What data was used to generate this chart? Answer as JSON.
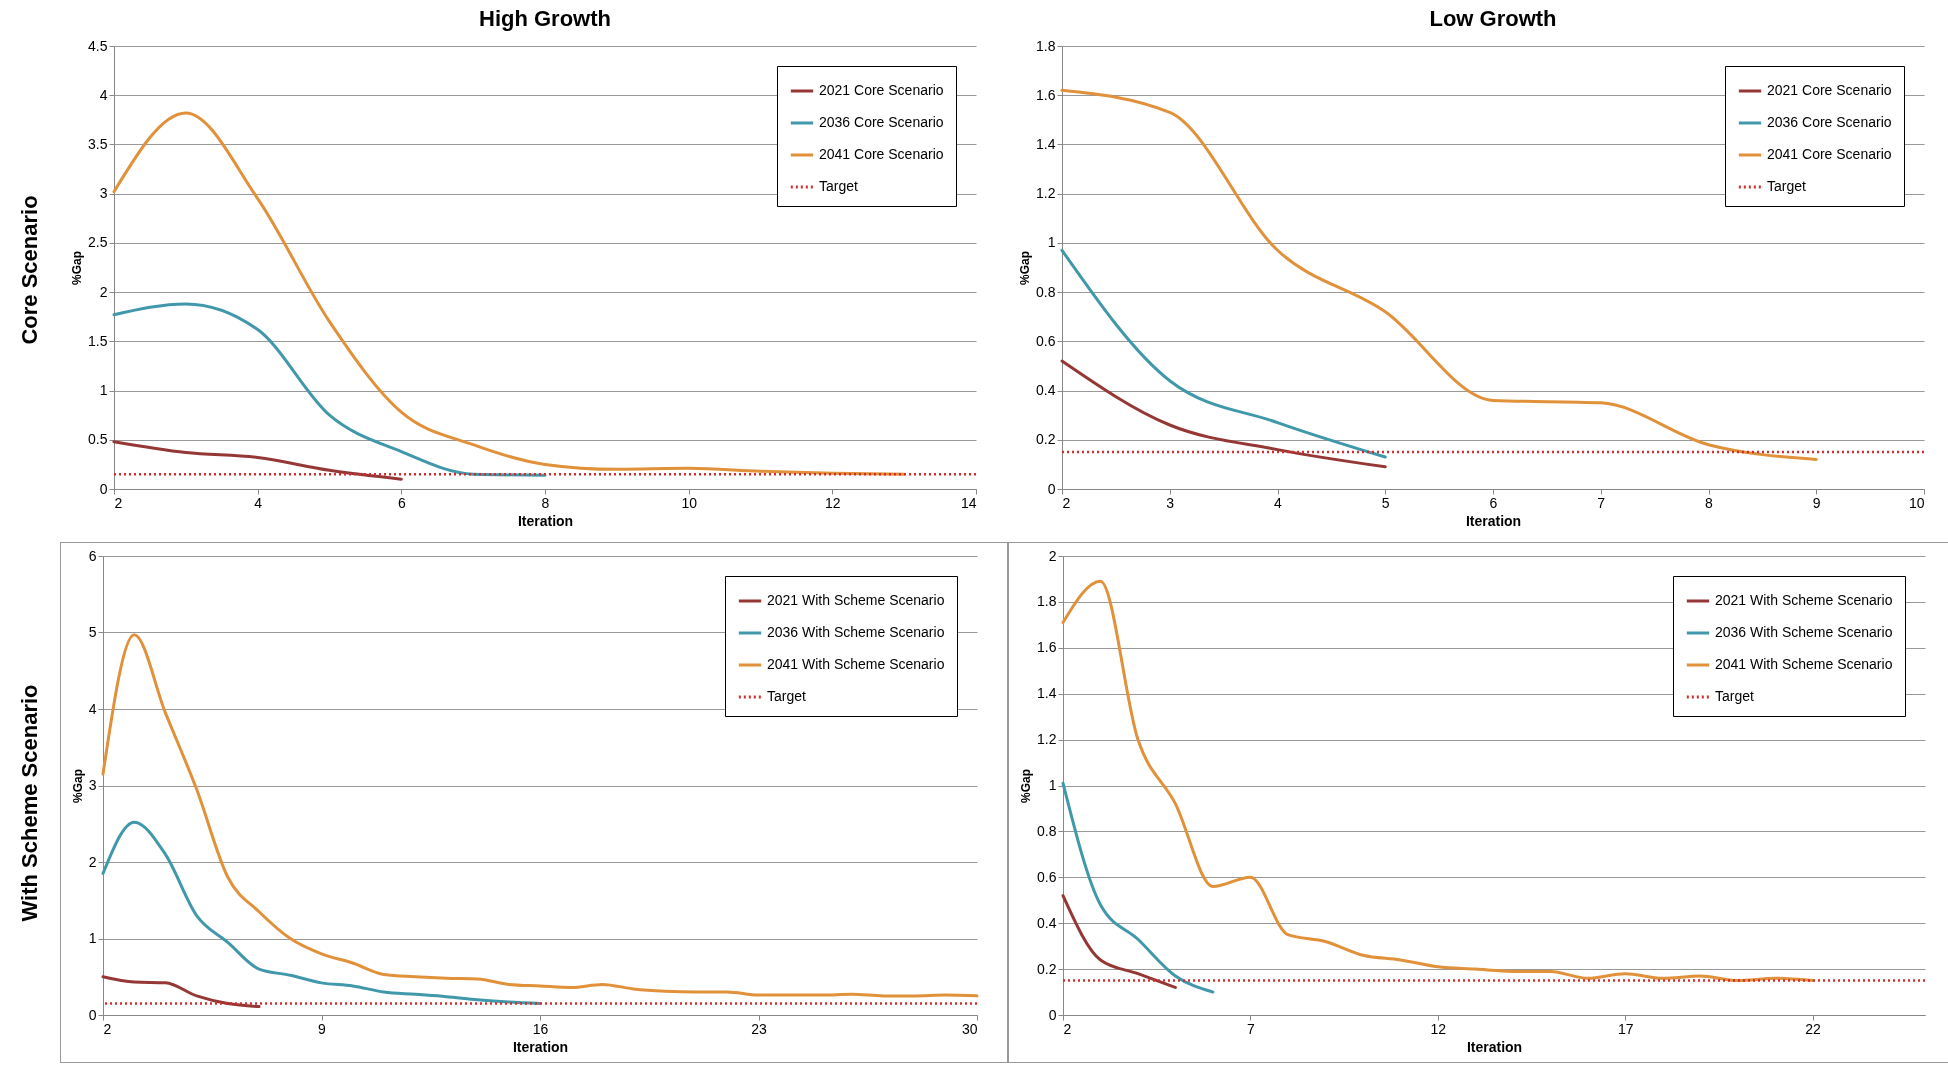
{
  "chart_data": [
    {
      "type": "line",
      "title": "High Growth",
      "annotations": [
        "Core Scenario"
      ],
      "xlabel": "Iteration",
      "ylabel": "%Gap",
      "xlim": [
        2,
        14
      ],
      "xticks": [
        2,
        4,
        6,
        8,
        10,
        12,
        14
      ],
      "ylim": [
        0,
        4.5
      ],
      "yticks": [
        0,
        0.5,
        1,
        1.5,
        2,
        2.5,
        3,
        3.5,
        4,
        4.5
      ],
      "grid": "y",
      "legend": "top right",
      "line_style": "solid",
      "series": [
        {
          "name": "2021 Core Scenario",
          "color": "#953735",
          "x": [
            2,
            3,
            4,
            5,
            6
          ],
          "values": [
            0.48,
            0.37,
            0.32,
            0.19,
            0.1
          ]
        },
        {
          "name": "2036 Core Scenario",
          "color": "#4198ab",
          "x": [
            2,
            3,
            4,
            5,
            6,
            7,
            8
          ],
          "values": [
            1.77,
            1.88,
            1.62,
            0.75,
            0.38,
            0.15,
            0.14
          ]
        },
        {
          "name": "2041 Core Scenario",
          "color": "#e0913a",
          "x": [
            2,
            3,
            4,
            5,
            6,
            7,
            8,
            9,
            10,
            11,
            12,
            13
          ],
          "values": [
            3.02,
            3.82,
            2.95,
            1.7,
            0.78,
            0.45,
            0.25,
            0.2,
            0.21,
            0.18,
            0.16,
            0.15
          ]
        }
      ],
      "ref_lines": [
        {
          "axis": "y",
          "value": 0.15,
          "label": "Target",
          "color": "#d42b2b",
          "line_style": "dotted"
        }
      ]
    },
    {
      "type": "line",
      "title": "Low Growth",
      "xlabel": "Iteration",
      "ylabel": "%Gap",
      "xlim": [
        2,
        10
      ],
      "xticks": [
        2,
        3,
        4,
        5,
        6,
        7,
        8,
        9,
        10
      ],
      "ylim": [
        0,
        1.8
      ],
      "yticks": [
        0,
        0.2,
        0.4,
        0.6,
        0.8,
        1,
        1.2,
        1.4,
        1.6,
        1.8
      ],
      "grid": "y",
      "legend": "top right",
      "line_style": "solid",
      "series": [
        {
          "name": "2021 Core Scenario",
          "color": "#953735",
          "x": [
            2,
            3,
            4,
            5
          ],
          "values": [
            0.52,
            0.26,
            0.16,
            0.09
          ]
        },
        {
          "name": "2036 Core Scenario",
          "color": "#4198ab",
          "x": [
            2,
            3,
            4,
            5
          ],
          "values": [
            0.97,
            0.44,
            0.27,
            0.13
          ]
        },
        {
          "name": "2041 Core Scenario",
          "color": "#e0913a",
          "x": [
            2,
            3,
            4,
            5,
            6,
            7,
            8,
            9
          ],
          "values": [
            1.62,
            1.53,
            0.97,
            0.72,
            0.36,
            0.35,
            0.18,
            0.12
          ]
        }
      ],
      "ref_lines": [
        {
          "axis": "y",
          "value": 0.15,
          "label": "Target",
          "color": "#d42b2b",
          "line_style": "dotted"
        }
      ]
    },
    {
      "type": "line",
      "annotations": [
        "With Scheme Scenario"
      ],
      "xlabel": "Iteration",
      "ylabel": "%Gap",
      "xlim": [
        2,
        30
      ],
      "xticks": [
        2,
        9,
        16,
        23,
        30
      ],
      "ylim": [
        0,
        6
      ],
      "yticks": [
        0,
        1,
        2,
        3,
        4,
        5,
        6
      ],
      "grid": "y",
      "legend": "top right",
      "line_style": "solid",
      "series": [
        {
          "name": "2021 With Scheme Scenario",
          "color": "#953735",
          "x": [
            2,
            3,
            4,
            5,
            6,
            7
          ],
          "values": [
            0.5,
            0.43,
            0.42,
            0.25,
            0.15,
            0.11
          ]
        },
        {
          "name": "2036 With Scheme Scenario",
          "color": "#4198ab",
          "x": [
            2,
            3,
            4,
            5,
            6,
            7,
            8,
            9,
            10,
            11,
            12,
            13,
            14,
            15,
            16
          ],
          "values": [
            1.85,
            2.52,
            2.1,
            1.3,
            0.95,
            0.6,
            0.52,
            0.42,
            0.38,
            0.3,
            0.27,
            0.24,
            0.2,
            0.17,
            0.15
          ]
        },
        {
          "name": "2041 With Scheme Scenario",
          "color": "#e0913a",
          "x": [
            2,
            3,
            4,
            5,
            6,
            7,
            8,
            9,
            10,
            11,
            12,
            13,
            14,
            15,
            16,
            17,
            18,
            19,
            20,
            21,
            22,
            23,
            24,
            25,
            26,
            27,
            28,
            29,
            30
          ],
          "values": [
            3.15,
            4.97,
            3.95,
            2.95,
            1.8,
            1.35,
            1.0,
            0.8,
            0.68,
            0.53,
            0.5,
            0.48,
            0.47,
            0.4,
            0.38,
            0.36,
            0.4,
            0.34,
            0.31,
            0.3,
            0.3,
            0.26,
            0.26,
            0.26,
            0.27,
            0.25,
            0.25,
            0.26,
            0.25
          ]
        }
      ],
      "ref_lines": [
        {
          "axis": "y",
          "value": 0.15,
          "label": "Target",
          "color": "#d42b2b",
          "line_style": "dotted"
        }
      ]
    },
    {
      "type": "line",
      "xlabel": "Iteration",
      "ylabel": "%Gap",
      "xlim": [
        2,
        25
      ],
      "xticks": [
        2,
        7,
        12,
        17,
        22
      ],
      "ylim": [
        0,
        2
      ],
      "yticks": [
        0,
        0.2,
        0.4,
        0.6,
        0.8,
        1,
        1.2,
        1.4,
        1.6,
        1.8,
        2
      ],
      "grid": "y",
      "legend": "top right",
      "line_style": "solid",
      "series": [
        {
          "name": "2021 With Scheme Scenario",
          "color": "#953735",
          "x": [
            2,
            3,
            4,
            5
          ],
          "values": [
            0.52,
            0.24,
            0.18,
            0.12
          ]
        },
        {
          "name": "2036 With Scheme Scenario",
          "color": "#4198ab",
          "x": [
            2,
            3,
            4,
            5,
            6
          ],
          "values": [
            1.01,
            0.48,
            0.33,
            0.17,
            0.1
          ]
        },
        {
          "name": "2041 With Scheme Scenario",
          "color": "#e0913a",
          "x": [
            2,
            3,
            4,
            5,
            6,
            7,
            8,
            9,
            10,
            11,
            12,
            13,
            14,
            15,
            16,
            17,
            18,
            19,
            20,
            21,
            22
          ],
          "values": [
            1.71,
            1.89,
            1.2,
            0.92,
            0.56,
            0.6,
            0.35,
            0.32,
            0.26,
            0.24,
            0.21,
            0.2,
            0.19,
            0.19,
            0.16,
            0.18,
            0.16,
            0.17,
            0.15,
            0.16,
            0.15
          ]
        }
      ],
      "ref_lines": [
        {
          "axis": "y",
          "value": 0.15,
          "label": "Target",
          "color": "#d42b2b",
          "line_style": "dotted"
        }
      ]
    }
  ]
}
